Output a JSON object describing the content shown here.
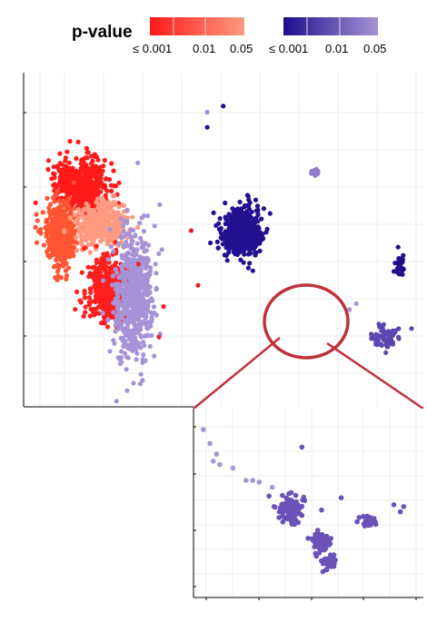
{
  "chart_data": {
    "type": "scatter",
    "title": "",
    "xlabel": "",
    "ylabel": "",
    "grid": true,
    "legend": {
      "title": "p-value",
      "placement": "top",
      "scales": [
        {
          "name": "",
          "colors": [
            "#ff1a1a",
            "#ff9a80"
          ],
          "tick_labels": [
            "≤ 0.001",
            "0.01",
            "0.05"
          ]
        },
        {
          "name": "",
          "colors": [
            "#1e0e8c",
            "#a693d6"
          ],
          "tick_labels": [
            "≤ 0.001",
            "0.01",
            "0.05"
          ]
        }
      ]
    },
    "panels": [
      {
        "name": "",
        "role": "main",
        "highlight": "circled cluster",
        "clusters": [
          {
            "center": [
              -6.5,
              2.8
            ],
            "spread": [
              1.0,
              0.8
            ],
            "n": 520,
            "color": "#ff1a1a"
          },
          {
            "center": [
              -7.4,
              1.2
            ],
            "spread": [
              0.6,
              0.9
            ],
            "n": 420,
            "color": "#ff5533"
          },
          {
            "center": [
              -5.6,
              1.5
            ],
            "spread": [
              1.0,
              0.6
            ],
            "n": 380,
            "color": "#ff9a80"
          },
          {
            "center": [
              -5.3,
              -0.6
            ],
            "spread": [
              0.9,
              0.9
            ],
            "n": 420,
            "color": "#ff1f1f"
          },
          {
            "center": [
              -4.2,
              -0.8
            ],
            "spread": [
              0.8,
              2.0
            ],
            "n": 620,
            "color": "#a693d6"
          },
          {
            "center": [
              0.5,
              1.3
            ],
            "spread": [
              0.8,
              0.7
            ],
            "n": 460,
            "color": "#221090"
          },
          {
            "center": [
              7.4,
              0.2
            ],
            "spread": [
              0.2,
              0.3
            ],
            "n": 28,
            "color": "#1e0e8c"
          },
          {
            "center": [
              6.8,
              -2.2
            ],
            "spread": [
              0.6,
              0.4
            ],
            "n": 70,
            "color": "#5e46b0"
          },
          {
            "center": [
              3.7,
              3.2
            ],
            "spread": [
              0.25,
              0.1
            ],
            "n": 14,
            "color": "#8f7ccc"
          }
        ],
        "extra_points": [
          {
            "x": -0.3,
            "y": 5.4,
            "color": "#1e0e8c"
          },
          {
            "x": -1.0,
            "y": 4.7,
            "color": "#1e0e8c"
          },
          {
            "x": -1.0,
            "y": 5.2,
            "color": "#9c8bd2"
          },
          {
            "x": -1.4,
            "y": -0.5,
            "color": "#e0202a"
          },
          {
            "x": -2.9,
            "y": -1.2,
            "color": "#e0202a"
          },
          {
            "x": -3.1,
            "y": -2.2,
            "color": "#e0202a"
          },
          {
            "x": -4.0,
            "y": 0.2,
            "color": "#e0202a"
          },
          {
            "x": -1.7,
            "y": 1.3,
            "color": "#e0202a"
          },
          {
            "x": -6.1,
            "y": -0.1,
            "color": "#e0202a"
          },
          {
            "x": 5.2,
            "y": -1.3,
            "color": "#a693d6"
          },
          {
            "x": 5.5,
            "y": -1.1,
            "color": "#a693d6"
          }
        ]
      },
      {
        "name": "",
        "role": "inset",
        "clusters": [
          {
            "center": [
              1.4,
              -0.3
            ],
            "spread": [
              0.35,
              0.35
            ],
            "n": 90,
            "color": "#6a52b8"
          },
          {
            "center": [
              2.4,
              -1.2
            ],
            "spread": [
              0.35,
              0.25
            ],
            "n": 70,
            "color": "#6a52b8"
          },
          {
            "center": [
              2.6,
              -1.8
            ],
            "spread": [
              0.2,
              0.2
            ],
            "n": 45,
            "color": "#6a52b8"
          },
          {
            "center": [
              3.8,
              -0.6
            ],
            "spread": [
              0.25,
              0.15
            ],
            "n": 30,
            "color": "#6a52b8"
          }
        ],
        "extra_points": [
          {
            "x": -1.2,
            "y": 2.0,
            "color": "#a693d6"
          },
          {
            "x": -1.0,
            "y": 1.6,
            "color": "#a693d6"
          },
          {
            "x": -0.9,
            "y": 1.1,
            "color": "#a693d6"
          },
          {
            "x": -0.7,
            "y": 1.0,
            "color": "#a693d6"
          },
          {
            "x": -0.8,
            "y": 1.3,
            "color": "#a693d6"
          },
          {
            "x": -0.3,
            "y": 0.9,
            "color": "#a693d6"
          },
          {
            "x": 0.1,
            "y": 0.55,
            "color": "#a693d6"
          },
          {
            "x": 0.5,
            "y": 0.5,
            "color": "#a693d6"
          },
          {
            "x": 0.3,
            "y": 0.55,
            "color": "#a693d6"
          },
          {
            "x": 0.9,
            "y": 0.35,
            "color": "#a693d6"
          },
          {
            "x": 1.8,
            "y": 1.5,
            "color": "#6a52b8"
          },
          {
            "x": 0.8,
            "y": 0.1,
            "color": "#6a52b8"
          },
          {
            "x": 3.0,
            "y": 0.05,
            "color": "#6a52b8"
          },
          {
            "x": 2.4,
            "y": -0.3,
            "color": "#6a52b8"
          },
          {
            "x": 4.6,
            "y": -0.15,
            "color": "#6a52b8"
          },
          {
            "x": 4.8,
            "y": -0.35,
            "color": "#6a52b8"
          },
          {
            "x": 4.9,
            "y": -0.2,
            "color": "#6a52b8"
          }
        ]
      }
    ]
  }
}
